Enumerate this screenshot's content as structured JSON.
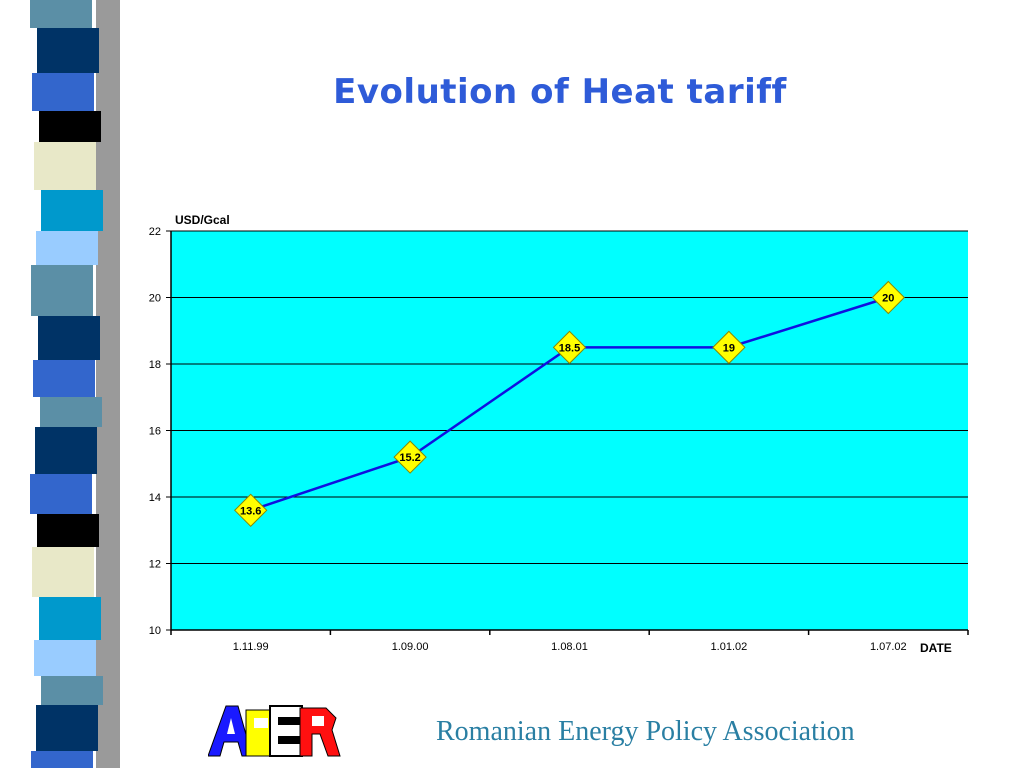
{
  "slide": {
    "title": "Evolution of Heat tariff",
    "footer": "Romanian Energy Policy Association",
    "logo_text": "APER"
  },
  "colors": {
    "plot_bg": "#00ffff",
    "line": "#1010e0",
    "marker": "#ffff00",
    "title": "#2e5bd8",
    "footer": "#2a7fa3"
  },
  "chart_data": {
    "type": "line",
    "title": "",
    "xlabel": "DATE",
    "ylabel": "USD/Gcal",
    "categories": [
      "1.11.99",
      "1.09.00",
      "1.08.01",
      "1.01.02",
      "1.07.02"
    ],
    "series": [
      {
        "values": [
          13.6,
          15.2,
          18.5,
          18.5,
          20
        ]
      }
    ],
    "data_labels": [
      "13.6",
      "15.2",
      "18.5",
      "19",
      "20"
    ],
    "ylim": [
      10,
      22
    ],
    "yticks": [
      10,
      12,
      14,
      16,
      18,
      20,
      22
    ],
    "grid": true,
    "legend": "none"
  }
}
